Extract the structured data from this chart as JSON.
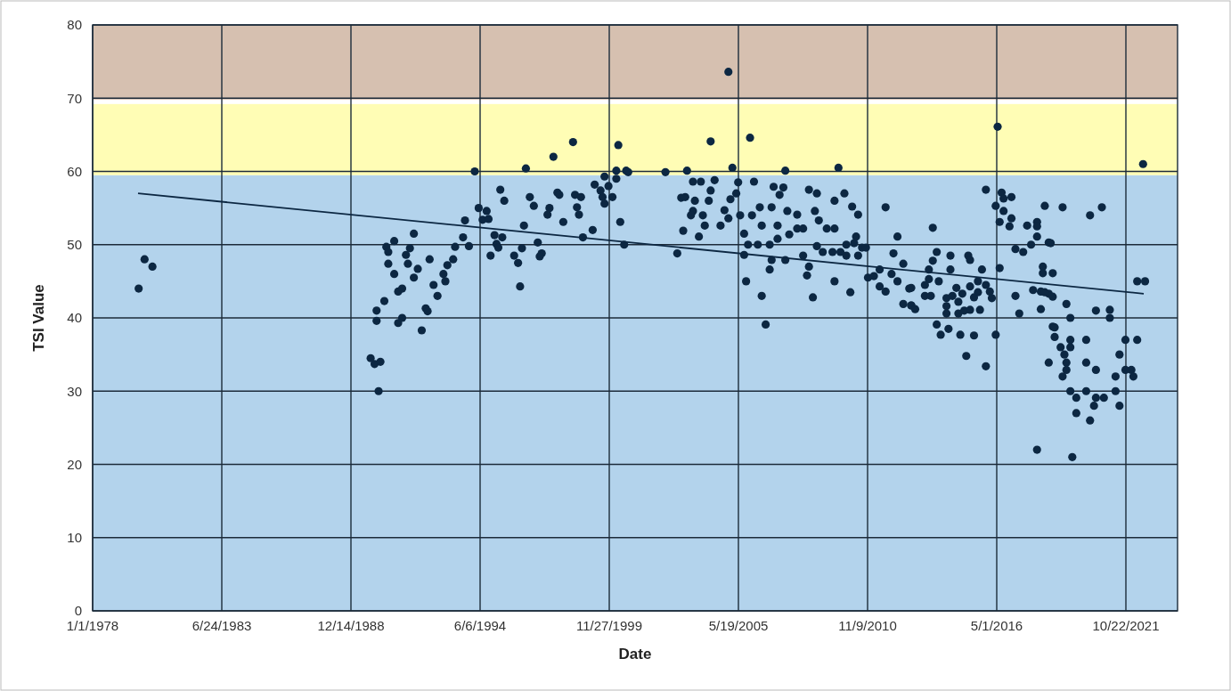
{
  "chart_data": {
    "type": "scatter",
    "xlabel": "Date",
    "ylabel": "TSI Value",
    "xlim": [
      "1978-01-01",
      "2023-12-31"
    ],
    "xticks": [
      {
        "value": "1978-01-01",
        "label": "1/1/1978"
      },
      {
        "value": "1983-06-24",
        "label": "6/24/1983"
      },
      {
        "value": "1988-12-14",
        "label": "12/14/1988"
      },
      {
        "value": "1994-06-06",
        "label": "6/6/1994"
      },
      {
        "value": "1999-11-27",
        "label": "11/27/1999"
      },
      {
        "value": "2005-05-19",
        "label": "5/19/2005"
      },
      {
        "value": "2010-11-09",
        "label": "11/9/2010"
      },
      {
        "value": "2016-05-01",
        "label": "5/1/2016"
      },
      {
        "value": "2021-10-22",
        "label": "10/22/2021"
      }
    ],
    "ylim": [
      0,
      80
    ],
    "yticks": [
      0,
      10,
      20,
      30,
      40,
      50,
      60,
      70,
      80
    ],
    "grid": true,
    "bands": [
      {
        "axis": "y",
        "from": 0,
        "to": 59.5,
        "color": "#b3d3ec"
      },
      {
        "axis": "y",
        "from": 59.5,
        "to": 69.2,
        "color": "#fffdb5"
      },
      {
        "axis": "y",
        "from": 69.8,
        "to": 80,
        "color": "#d6c0b0"
      }
    ],
    "series": [
      {
        "color": "#0c2742",
        "marker": "circle",
        "x": [
          "1979-12",
          "1980-03",
          "1980-07",
          "1989-10",
          "1989-12",
          "1990-03",
          "1990-02",
          "1990-01",
          "1990-01",
          "1990-05",
          "1990-06",
          "1990-07",
          "1990-10",
          "1990-07",
          "1990-10",
          "1990-12",
          "1991-02",
          "1990-12",
          "1991-02",
          "1991-08",
          "1991-06",
          "1991-04",
          "1991-05",
          "1991-10",
          "1991-08",
          "1991-12",
          "1992-02",
          "1992-03",
          "1992-04",
          "1992-06",
          "1992-08",
          "1992-11",
          "1992-12",
          "1993-01",
          "1993-04",
          "1993-05",
          "1993-09",
          "1993-10",
          "1993-12",
          "1994-03",
          "1994-05",
          "1994-07",
          "1995-04",
          "1995-06",
          "1994-09",
          "1994-10",
          "1995-01",
          "1995-05",
          "1995-02",
          "1995-03",
          "1994-11",
          "1996-04",
          "1996-03",
          "1995-11",
          "1996-01",
          "1996-02",
          "1996-05",
          "1996-07",
          "1996-09",
          "1996-11",
          "1997-01",
          "1996-12",
          "1997-07",
          "1997-05",
          "1997-04",
          "1997-09",
          "1997-10",
          "1997-12",
          "1998-05",
          "1998-06",
          "1998-09",
          "1998-07",
          "1998-08",
          "1998-10",
          "1999-03",
          "1999-04",
          "1999-07",
          "1999-08",
          "1999-09",
          "1999-09",
          "1999-11",
          "2000-01",
          "2000-03",
          "2000-03",
          "2000-04",
          "2000-08",
          "2000-05",
          "2000-07",
          "2000-09",
          "2002-04",
          "2003-03",
          "2004-03",
          "2004-12",
          "2005-02",
          "2005-11",
          "2002-10",
          "2003-01",
          "2003-09",
          "2002-12",
          "2003-02",
          "2003-07",
          "2003-06",
          "2003-05",
          "2003-11",
          "2003-12",
          "2004-02",
          "2004-03",
          "2003-10",
          "2003-06",
          "2004-05",
          "2004-10",
          "2004-12",
          "2004-08",
          "2005-01",
          "2005-04",
          "2005-05",
          "2005-06",
          "2006-01",
          "2005-08",
          "2005-08",
          "2005-10",
          "2006-03",
          "2005-09",
          "2006-05",
          "2006-07",
          "2006-05",
          "2005-12",
          "2006-04",
          "2007-05",
          "2009-08",
          "2006-11",
          "2007-04",
          "2007-02",
          "2006-10",
          "2007-06",
          "2007-11",
          "2007-01",
          "2007-01",
          "2007-07",
          "2007-11",
          "2008-02",
          "2006-09",
          "2006-10",
          "2006-09",
          "2007-05",
          "2008-05",
          "2008-09",
          "2008-08",
          "2008-10",
          "2009-02",
          "2009-06",
          "2009-06",
          "2009-11",
          "2010-03",
          "2010-06",
          "2008-09",
          "2008-12",
          "2009-05",
          "2009-09",
          "2009-12",
          "2009-12",
          "2010-04",
          "2010-05",
          "2010-06",
          "2010-08",
          "2010-10",
          "2008-02",
          "2008-05",
          "2008-04",
          "2009-06",
          "2008-07",
          "2010-02",
          "2010-11",
          "2011-02",
          "2011-05",
          "2011-08",
          "2012-02",
          "2011-12",
          "2012-05",
          "2011-11",
          "2012-02",
          "2011-05",
          "2011-08",
          "2012-08",
          "2012-05",
          "2012-09",
          "2013-08",
          "2013-10",
          "2013-08",
          "2014-05",
          "2015-02",
          "2015-03",
          "2014-05",
          "2015-09",
          "2013-06",
          "2013-06",
          "2013-11",
          "2013-04",
          "2012-09",
          "2013-04",
          "2013-07",
          "2012-09",
          "2012-11",
          "2014-03",
          "2014-06",
          "2014-08",
          "2014-11",
          "2015-03",
          "2015-07",
          "2015-07",
          "2015-11",
          "2016-01",
          "2016-02",
          "2015-05",
          "2014-09",
          "2014-03",
          "2014-03",
          "2014-09",
          "2014-12",
          "2015-03",
          "2015-08",
          "2013-10",
          "2013-12",
          "2014-04",
          "2014-10",
          "2015-05",
          "2016-04",
          "2015-01",
          "2015-11",
          "2015-11",
          "2016-06",
          "2016-04",
          "2016-07",
          "2016-08",
          "2016-12",
          "2016-08",
          "2016-12",
          "2016-06",
          "2016-11",
          "2016-05",
          "2017-08",
          "2018-01",
          "2018-01",
          "2018-05",
          "2017-02",
          "2017-06",
          "2017-10",
          "2018-01",
          "2018-07",
          "2018-04",
          "2018-04",
          "2018-09",
          "2017-02",
          "2017-11",
          "2018-03",
          "2018-07",
          "2017-04",
          "2018-03",
          "2018-09",
          "2018-07",
          "2018-01",
          "2019-02",
          "2020-04",
          "2020-10",
          "2018-08",
          "2018-05",
          "2018-09",
          "2019-04",
          "2019-06",
          "2020-07",
          "2021-02",
          "2021-02",
          "2018-10",
          "2018-10",
          "2019-06",
          "2019-06",
          "2020-02",
          "2019-01",
          "2019-03",
          "2019-04",
          "2019-04",
          "2019-02",
          "2020-02",
          "2020-07",
          "2021-05",
          "2021-07",
          "2021-10",
          "2022-04",
          "2021-10",
          "2022-01",
          "2022-02",
          "2019-06",
          "2020-02",
          "2021-05",
          "2019-09",
          "2020-07",
          "2020-11",
          "2020-06",
          "2021-07",
          "2019-09",
          "2020-04",
          "2022-04",
          "2022-08",
          "2022-07",
          "2019-07"
        ],
        "values": [
          44,
          48,
          47,
          34.5,
          33.7,
          34,
          30,
          39.6,
          41,
          42.3,
          49.7,
          49,
          50.5,
          47.4,
          46,
          43.6,
          44,
          39.3,
          40,
          51.5,
          49.5,
          48.6,
          47.4,
          46.7,
          45.5,
          38.3,
          41.3,
          40.9,
          48,
          44.5,
          43,
          46,
          45,
          47.2,
          48,
          49.7,
          51,
          53.3,
          49.8,
          60,
          55,
          53.4,
          57.5,
          56,
          54.6,
          53.5,
          51.3,
          51,
          50.1,
          49.6,
          48.5,
          52.6,
          49.5,
          48.5,
          47.5,
          44.3,
          60.4,
          56.5,
          55.3,
          50.3,
          48.8,
          48.4,
          62,
          55,
          54.1,
          57.1,
          56.8,
          53.1,
          64,
          56.8,
          56.5,
          55.1,
          54.1,
          51,
          52,
          58.2,
          57.4,
          56.5,
          55.6,
          59.3,
          58,
          56.5,
          59,
          60.1,
          63.6,
          60.1,
          53.1,
          50,
          59.9,
          59.9,
          60.1,
          64.1,
          73.6,
          60.5,
          64.6,
          48.8,
          51.9,
          51.1,
          56.4,
          56.5,
          56,
          54.6,
          54,
          54,
          52.6,
          56,
          57.4,
          58.6,
          58.6,
          58.8,
          54.7,
          53.6,
          52.6,
          56.2,
          57,
          58.5,
          54,
          58.6,
          48.6,
          51.5,
          50,
          50,
          45,
          43,
          39.1,
          52.6,
          54,
          55.1,
          60.1,
          60.5,
          57.9,
          57.8,
          56.8,
          55.1,
          54.6,
          54.1,
          52.6,
          50.8,
          51.4,
          52.2,
          52.2,
          50,
          47.9,
          46.6,
          47.9,
          57.5,
          57,
          54.6,
          53.3,
          52.2,
          52.2,
          56,
          57,
          55.2,
          54.1,
          49.8,
          49,
          49,
          49,
          48.5,
          50,
          50.2,
          51.1,
          48.5,
          49.6,
          49.6,
          48.5,
          47,
          45.8,
          45,
          42.8,
          43.5,
          45.5,
          45.7,
          46.6,
          55.1,
          51.1,
          48.8,
          47.4,
          46,
          45,
          44.3,
          43.6,
          44,
          41.9,
          41.7,
          52.3,
          49,
          47.8,
          48.5,
          48.5,
          47.9,
          46.6,
          46.6,
          46.6,
          45.3,
          45,
          44.5,
          44.1,
          43,
          43,
          41.7,
          41.2,
          42.7,
          43,
          44.1,
          43.3,
          44.3,
          43.5,
          45,
          44.5,
          43.6,
          42.7,
          42.8,
          42.2,
          41.6,
          40.6,
          40.6,
          41,
          41.1,
          41.1,
          39.1,
          37.7,
          38.5,
          37.7,
          37.6,
          37.7,
          34.8,
          33.4,
          57.5,
          46.8,
          55.3,
          57.1,
          56.3,
          56.5,
          54.6,
          53.6,
          53.1,
          52.5,
          66.1,
          52.6,
          53.1,
          52.5,
          55.3,
          49.4,
          49,
          50,
          51.1,
          50.3,
          47,
          46.1,
          46.1,
          43,
          43.8,
          43.6,
          43.3,
          40.6,
          41.2,
          38.8,
          33.9,
          22,
          55.1,
          54,
          55.1,
          50.2,
          43.5,
          42.9,
          41.9,
          40,
          41,
          41.1,
          40,
          38.7,
          37.4,
          37,
          36,
          37,
          36,
          35,
          33.9,
          32.9,
          32,
          33.9,
          32.9,
          32,
          35,
          37,
          37,
          32.9,
          32.9,
          32,
          30,
          30,
          30,
          29.1,
          29.1,
          29.1,
          28,
          28,
          27,
          26,
          45,
          45,
          61,
          21
        ]
      },
      {
        "type": "line",
        "marker": "none",
        "color": "#0c2742",
        "x": [
          "1979-12-05",
          "2022-07-25"
        ],
        "values": [
          57,
          43.3
        ]
      }
    ]
  }
}
